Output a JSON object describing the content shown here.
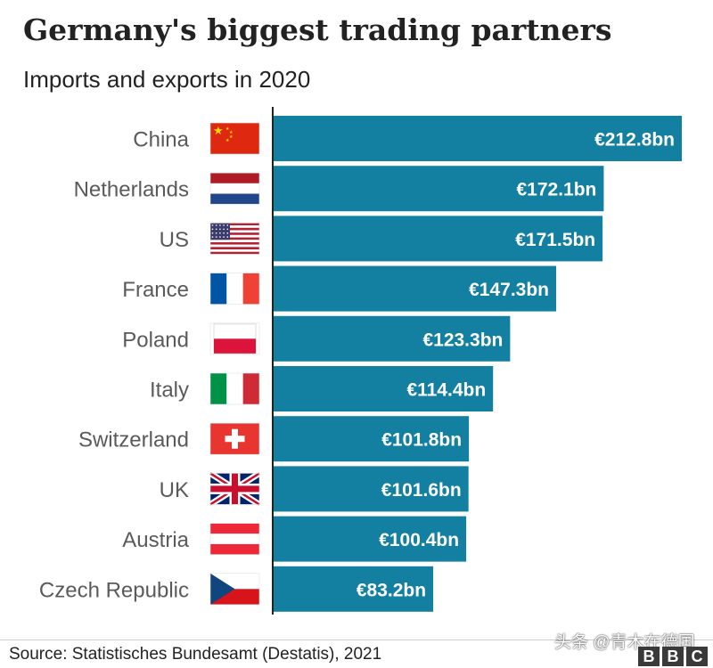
{
  "title": "Germany's biggest trading partners",
  "subtitle": "Imports and exports in 2020",
  "source": "Source:  Statistisches Bundesamt (Destatis), 2021",
  "watermark": "头条 @青木在德国",
  "brand": {
    "letters": [
      "B",
      "B",
      "C"
    ]
  },
  "colors": {
    "bar": "#1380A1",
    "bar_label": "#ffffff",
    "category_label": "#5a5a5a",
    "axis_line": "#222222"
  },
  "chart_data": {
    "type": "bar",
    "orientation": "horizontal",
    "title": "Germany's biggest trading partners",
    "subtitle": "Imports and exports in 2020",
    "categories": [
      "China",
      "Netherlands",
      "US",
      "France",
      "Poland",
      "Italy",
      "Switzerland",
      "UK",
      "Austria",
      "Czech Republic"
    ],
    "values": [
      212.8,
      172.1,
      171.5,
      147.3,
      123.3,
      114.4,
      101.8,
      101.6,
      100.4,
      83.2
    ],
    "labels": [
      "€212.8bn",
      "€172.1bn",
      "€171.5bn",
      "€147.3bn",
      "€123.3bn",
      "€114.4bn",
      "€101.8bn",
      "€101.6bn",
      "€100.4bn",
      "€83.2bn"
    ],
    "flags": [
      "china-flag-icon",
      "netherlands-flag-icon",
      "us-flag-icon",
      "france-flag-icon",
      "poland-flag-icon",
      "italy-flag-icon",
      "switzerland-flag-icon",
      "uk-flag-icon",
      "austria-flag-icon",
      "czech-republic-flag-icon"
    ],
    "xlim": [
      0,
      212.8
    ],
    "grid": false,
    "legend": "none"
  }
}
